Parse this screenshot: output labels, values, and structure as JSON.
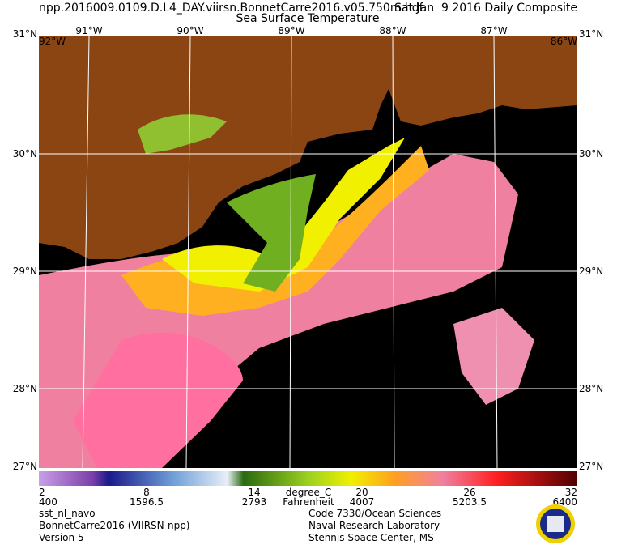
{
  "header": {
    "filename": "npp.2016009.0109.D.L4_DAY.viirsn.BonnetCarre2016.v05.750m.hdf",
    "date": "Sat Jan  9 2016 Daily Composite",
    "product": "Sea Surface Temperature"
  },
  "map": {
    "lon_labels": [
      "92°W",
      "91°W",
      "90°W",
      "89°W",
      "88°W",
      "87°W",
      "86°W"
    ],
    "lat_labels": [
      "31°N",
      "30°N",
      "29°N",
      "28°N",
      "27°N"
    ]
  },
  "colorbar": {
    "celsius_labels": [
      "2",
      "8",
      "14",
      "20",
      "26",
      "32"
    ],
    "celsius_unit": "degree_C",
    "other_labels": [
      "400",
      "1596.5",
      "2793",
      "4007",
      "5203.5",
      "6400"
    ],
    "other_unit": "Fahrenheit"
  },
  "footer": {
    "left": [
      "sst_nl_navo",
      "BonnetCarre2016 (VIIRSN-npp)",
      "Version 5"
    ],
    "right": [
      "Code 7330/Ocean Sciences",
      "Naval Research Laboratory",
      "Stennis Space Center, MS"
    ]
  }
}
